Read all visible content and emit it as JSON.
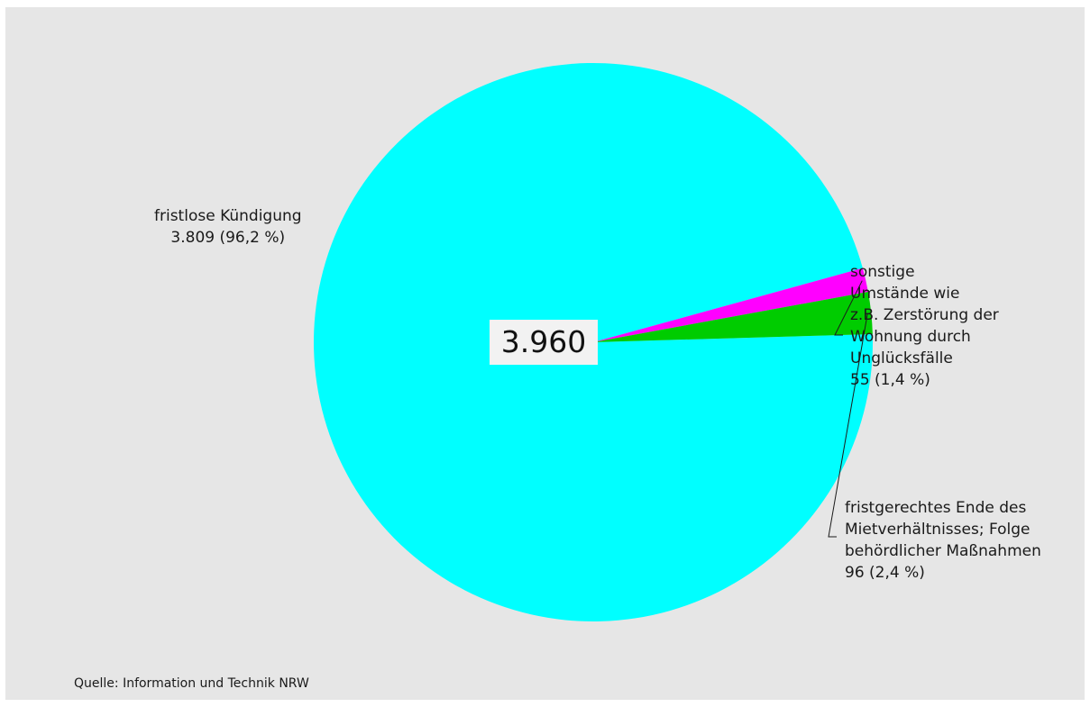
{
  "chart_data": {
    "type": "pie",
    "total_label": "3.960",
    "slices": [
      {
        "label_lines": [
          "fristlose Kündigung"
        ],
        "value": 3809,
        "value_label": "3.809 (96,2 %)",
        "color": "#00ffff"
      },
      {
        "label_lines": [
          "sonstige",
          "Umstände  wie",
          "z.B. Zerstörung der",
          "Wohnung durch",
          "Unglücksfälle"
        ],
        "value": 55,
        "value_label": "55 (1,4 %)",
        "color": "#ff00ff"
      },
      {
        "label_lines": [
          "fristgerechtes Ende des",
          "Mietverhältnisses; Folge",
          "behördlicher Maßnahmen"
        ],
        "value": 96,
        "value_label": "96 (2,4 %)",
        "color": "#00cc00"
      }
    ],
    "source": "Quelle: Information und Technik NRW"
  }
}
